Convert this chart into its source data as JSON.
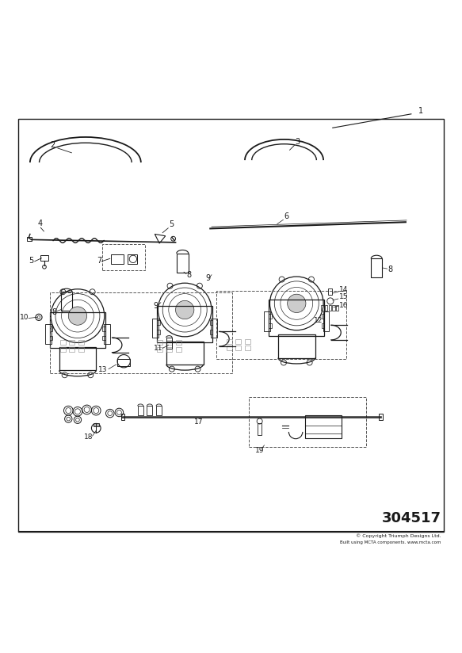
{
  "bg_color": "#ffffff",
  "border_color": "#000000",
  "line_color": "#1a1a1a",
  "part_number": "304517",
  "copyright": "© Copyright Triumph Designs Ltd.",
  "copyright2": "Built using MCTA components. www.mcta.com"
}
